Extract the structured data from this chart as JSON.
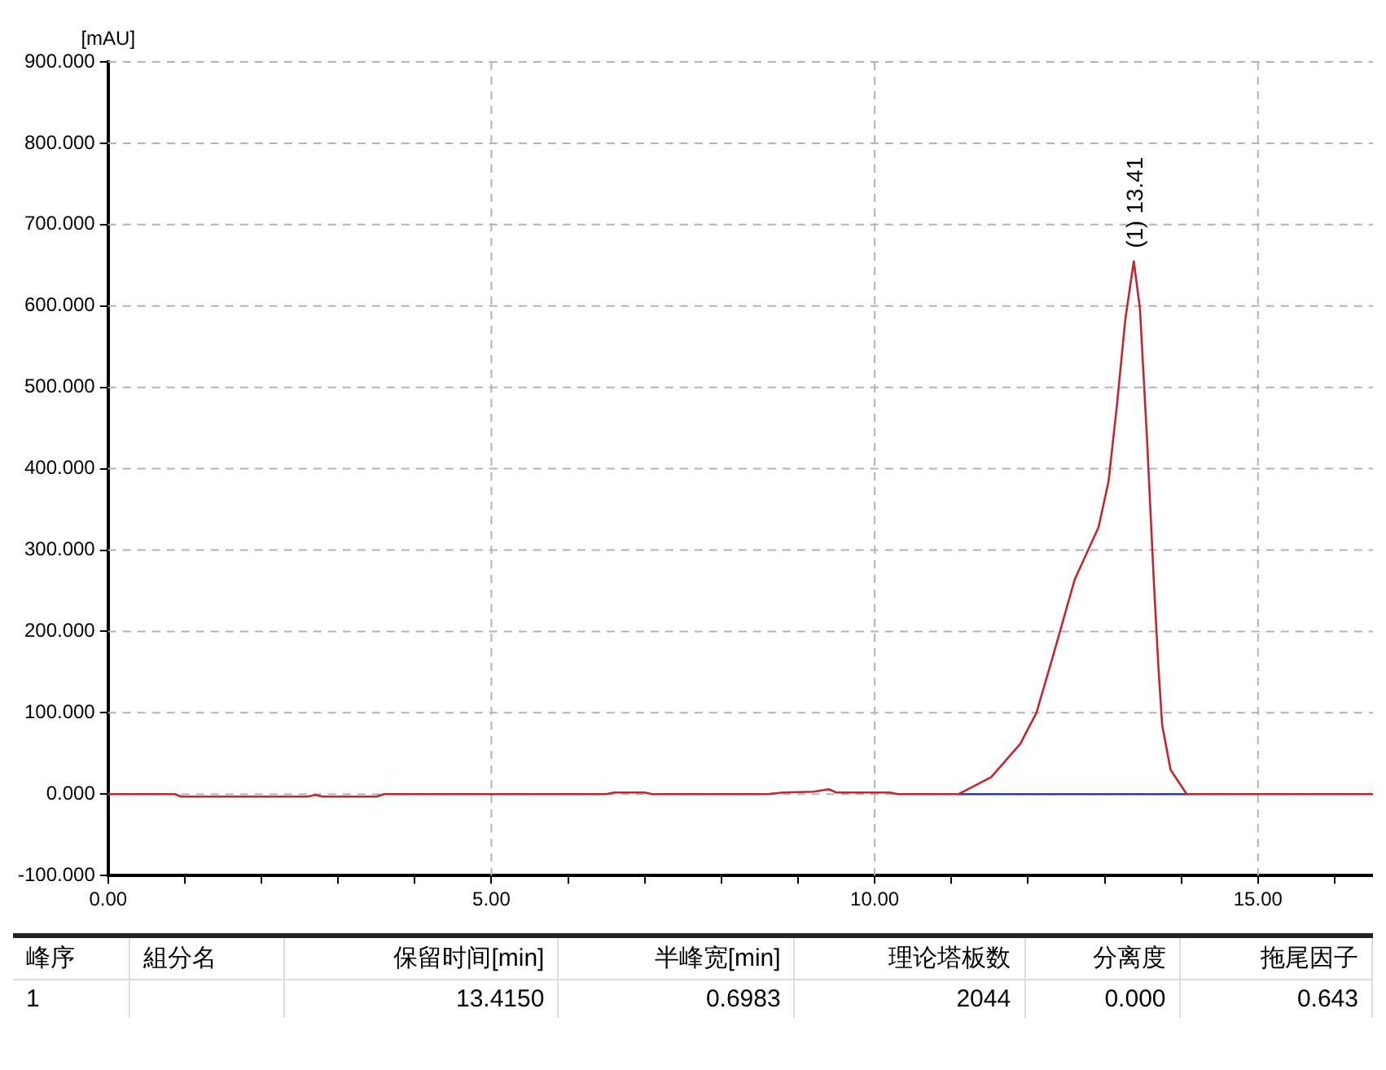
{
  "chart_data": {
    "type": "line",
    "ylabel": "[mAU]",
    "xlim": [
      0,
      16.5
    ],
    "ylim": [
      -100,
      900
    ],
    "xticks": [
      {
        "value": 0,
        "label": "0.00"
      },
      {
        "value": 1,
        "label": null
      },
      {
        "value": 2,
        "label": null
      },
      {
        "value": 3,
        "label": null
      },
      {
        "value": 4,
        "label": null
      },
      {
        "value": 5,
        "label": "5.00"
      },
      {
        "value": 6,
        "label": null
      },
      {
        "value": 7,
        "label": null
      },
      {
        "value": 8,
        "label": null
      },
      {
        "value": 9,
        "label": null
      },
      {
        "value": 10,
        "label": "10.00"
      },
      {
        "value": 11,
        "label": null
      },
      {
        "value": 12,
        "label": null
      },
      {
        "value": 13,
        "label": null
      },
      {
        "value": 14,
        "label": null
      },
      {
        "value": 15,
        "label": "15.00"
      },
      {
        "value": 16,
        "label": null
      }
    ],
    "yticks": [
      {
        "value": -100,
        "label": "-100.000"
      },
      {
        "value": 0,
        "label": "0.000"
      },
      {
        "value": 100,
        "label": "100.000"
      },
      {
        "value": 200,
        "label": "200.000"
      },
      {
        "value": 300,
        "label": "300.000"
      },
      {
        "value": 400,
        "label": "400.000"
      },
      {
        "value": 500,
        "label": "500.000"
      },
      {
        "value": 600,
        "label": "600.000"
      },
      {
        "value": 700,
        "label": "700.000"
      },
      {
        "value": 800,
        "label": "800.000"
      },
      {
        "value": 900,
        "label": "900.000"
      }
    ],
    "grid": true,
    "legend": false,
    "marker": "none",
    "line_style": "solid",
    "series": [
      {
        "color": "#c0282d",
        "x": [
          0,
          0.87,
          0.95,
          2.6,
          2.7,
          2.8,
          3.5,
          3.6,
          6.5,
          6.6,
          7.0,
          7.1,
          8.6,
          8.8,
          9.2,
          9.4,
          9.5,
          10.2,
          10.3,
          11.09,
          11.52,
          11.9,
          12.11,
          12.33,
          12.61,
          12.92,
          13.05,
          13.16,
          13.27,
          13.38,
          13.46,
          13.55,
          13.64,
          13.7,
          13.75,
          13.86,
          14.07,
          16.5
        ],
        "values": [
          0,
          0,
          -3,
          -3,
          -1,
          -3,
          -3,
          0,
          0,
          2,
          2,
          0,
          0,
          2,
          3,
          6,
          2,
          2,
          0,
          0,
          21,
          62,
          100,
          171,
          264,
          328,
          384,
          478,
          584,
          655,
          597,
          441,
          264,
          158,
          85,
          30,
          0,
          0
        ]
      },
      {
        "color": "#2a3f9e",
        "x": [
          11.09,
          14.07
        ],
        "values": [
          0,
          0
        ]
      }
    ],
    "annotations": [
      {
        "text": "(1) 13.41",
        "x": 13.41,
        "y": 655
      },
      "峰序",
      "組分名",
      "保留时间[min]",
      "半峰宽[min]",
      "理论塔板数",
      "分离度",
      "拖尾因子",
      "1",
      "13.4150",
      "0.6983",
      "2044",
      "0.000",
      "0.643"
    ]
  }
}
